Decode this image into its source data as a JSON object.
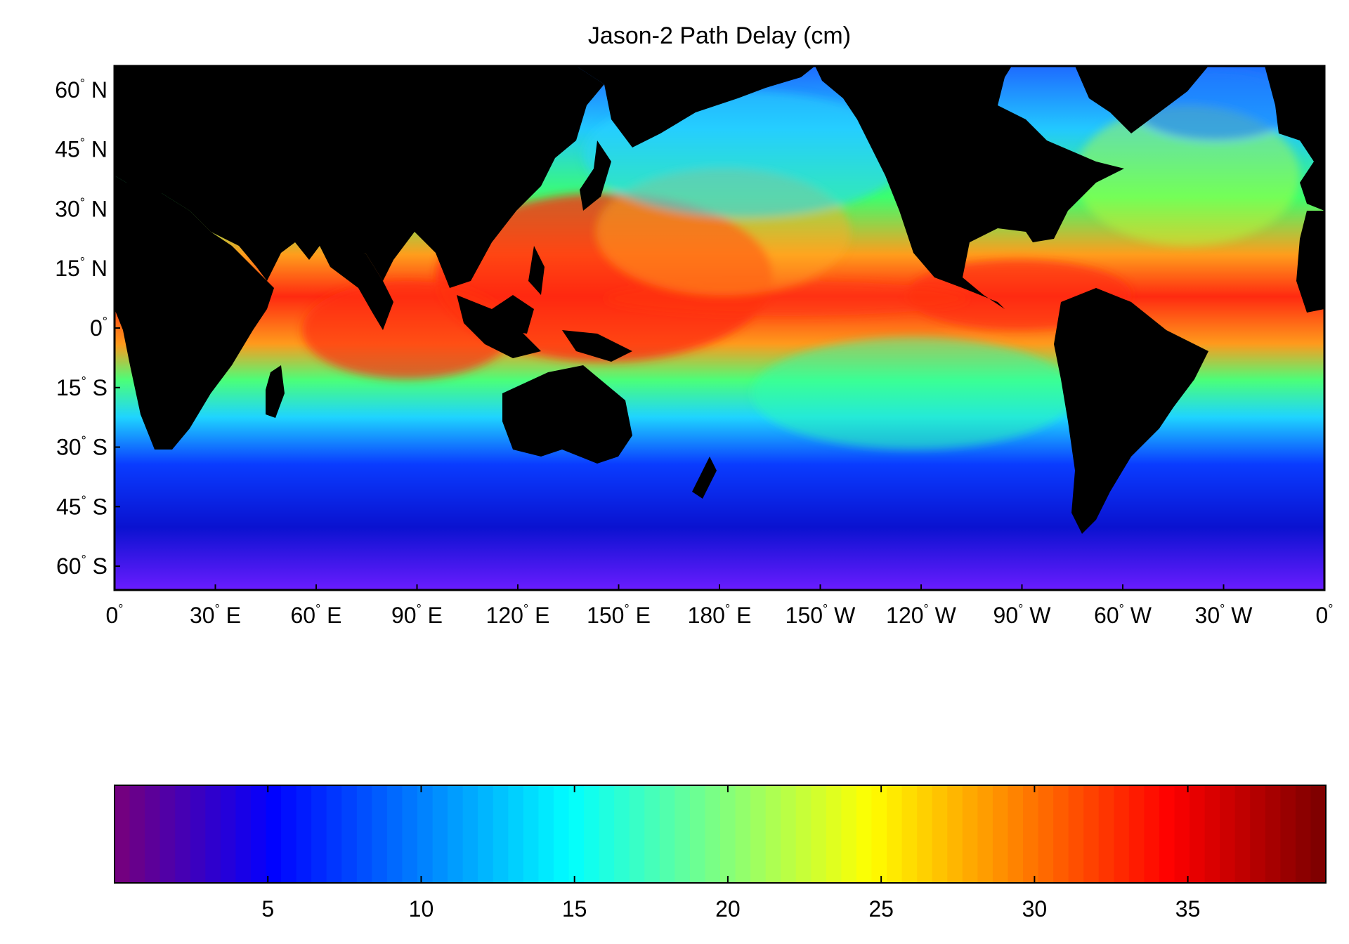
{
  "title": "Jason-2 Path Delay (cm)",
  "chart_data": {
    "type": "heatmap",
    "title": "Jason-2 Path Delay (cm)",
    "colorbar": {
      "ticks": [
        5,
        10,
        15,
        20,
        25,
        30,
        35
      ],
      "tick_labels": [
        "5",
        "10",
        "15",
        "20",
        "25",
        "30",
        "35"
      ],
      "range": [
        0,
        39.5
      ],
      "colormap": "jet",
      "steps": 80
    },
    "lon_ticks": [
      0,
      30,
      60,
      90,
      120,
      150,
      180,
      210,
      240,
      270,
      300,
      330,
      360
    ],
    "lon_labels": [
      "0",
      "30",
      "60",
      "90",
      "120",
      "150",
      "180",
      "150",
      "120",
      "90",
      "60",
      "30",
      "0"
    ],
    "lon_suffix": [
      "",
      "E",
      "E",
      "E",
      "E",
      "E",
      "E",
      "W",
      "W",
      "W",
      "W",
      "W",
      ""
    ],
    "lat_ticks": [
      60,
      45,
      30,
      15,
      0,
      -15,
      -30,
      -45,
      -60
    ],
    "lat_labels": [
      "60",
      "45",
      "30",
      "15",
      "0",
      "15",
      "30",
      "45",
      "60"
    ],
    "lat_suffix": [
      "N",
      "N",
      "N",
      "N",
      "",
      "S",
      "S",
      "S",
      "S"
    ],
    "lat_range": [
      -66,
      66
    ],
    "lon_range": [
      0,
      360
    ],
    "land_color": "#000000",
    "grid": false,
    "field_description": "path delay highest (30-39 cm) in tropical warm pool and equatorial bands, 15-25 cm mid-latitudes, 2-8 cm Southern Ocean"
  }
}
